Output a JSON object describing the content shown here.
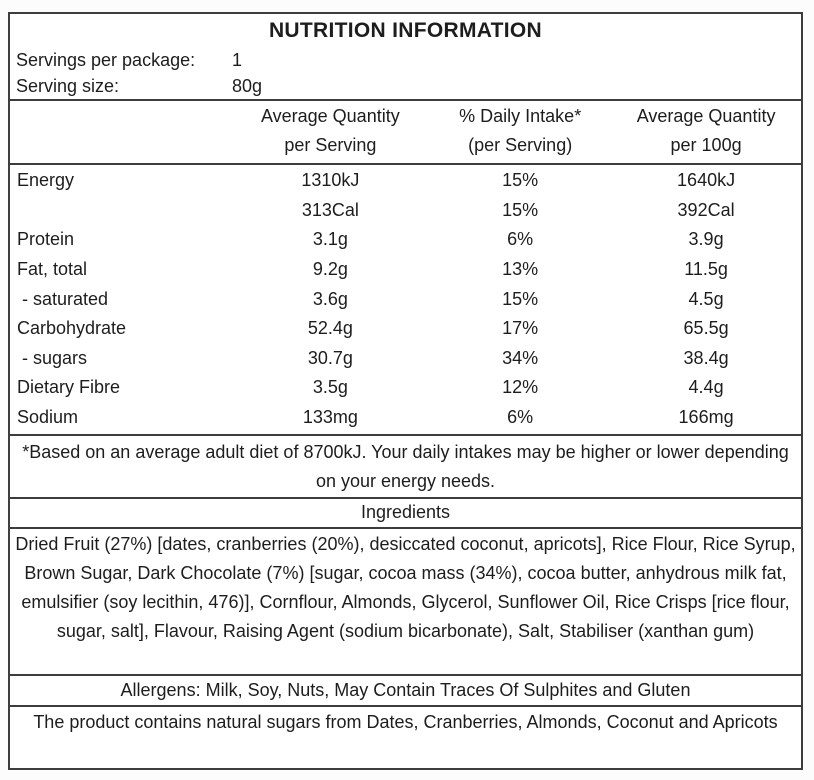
{
  "panel": {
    "title": "NUTRITION INFORMATION",
    "servings_per_package": {
      "label": "Servings per package:",
      "value": "1"
    },
    "serving_size": {
      "label": "Serving size:",
      "value": "80g"
    },
    "columns": [
      {
        "line1": "Average Quantity",
        "line2": "per Serving"
      },
      {
        "line1": "% Daily Intake*",
        "line2": "(per Serving)"
      },
      {
        "line1": "Average Quantity",
        "line2": "per 100g"
      }
    ],
    "rows": [
      {
        "name": "Energy",
        "qty_serving": "1310kJ",
        "daily_intake": "15%",
        "qty_100g": "1640kJ"
      },
      {
        "name": "",
        "qty_serving": "313Cal",
        "daily_intake": "15%",
        "qty_100g": "392Cal"
      },
      {
        "name": "Protein",
        "qty_serving": "3.1g",
        "daily_intake": "6%",
        "qty_100g": "3.9g"
      },
      {
        "name": "Fat, total",
        "qty_serving": "9.2g",
        "daily_intake": "13%",
        "qty_100g": "11.5g"
      },
      {
        "name": "- saturated",
        "qty_serving": "3.6g",
        "daily_intake": "15%",
        "qty_100g": "4.5g"
      },
      {
        "name": "Carbohydrate",
        "qty_serving": "52.4g",
        "daily_intake": "17%",
        "qty_100g": "65.5g"
      },
      {
        "name": "- sugars",
        "qty_serving": "30.7g",
        "daily_intake": "34%",
        "qty_100g": "38.4g"
      },
      {
        "name": "Dietary Fibre",
        "qty_serving": "3.5g",
        "daily_intake": "12%",
        "qty_100g": "4.4g"
      },
      {
        "name": "Sodium",
        "qty_serving": "133mg",
        "daily_intake": "6%",
        "qty_100g": "166mg"
      }
    ],
    "footnote": "*Based on an average adult diet of 8700kJ. Your daily intakes may be higher or lower depending on your energy needs.",
    "ingredients_heading": "Ingredients",
    "ingredients_text": "Dried Fruit (27%) [dates, cranberries (20%), desiccated coconut, apricots], Rice Flour, Rice Syrup, Brown Sugar, Dark Chocolate (7%) [sugar, cocoa mass (34%), cocoa butter, anhydrous milk fat, emulsifier (soy lecithin, 476)], Cornflour, Almonds, Glycerol, Sunflower Oil, Rice Crisps [rice flour, sugar, salt], Flavour, Raising Agent (sodium bicarbonate), Salt, Stabiliser (xanthan gum)",
    "allergens": "Allergens: Milk, Soy, Nuts, May Contain Traces Of Sulphites and Gluten",
    "natural_sugars": "The product contains natural sugars from Dates, Cranberries, Almonds, Coconut and Apricots",
    "colors": {
      "border": "#3d3d3d",
      "text": "#1d1d1d",
      "background": "#ffffff"
    }
  }
}
